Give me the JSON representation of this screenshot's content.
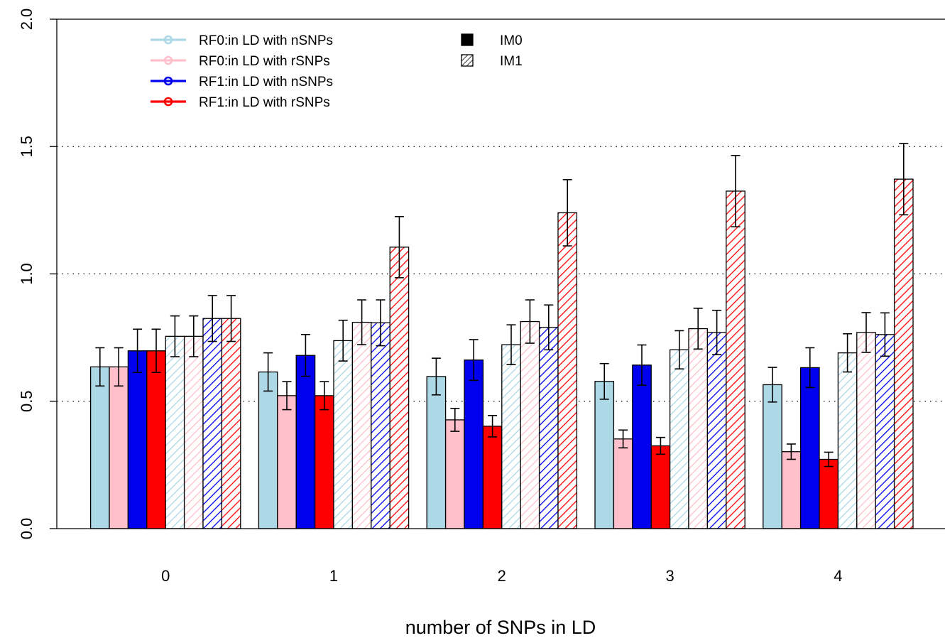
{
  "chart_data": {
    "type": "bar",
    "xlabel": "number of SNPs in LD",
    "ylabel": "",
    "ylim": [
      0,
      2
    ],
    "yticks": [
      "0.0",
      "0.5",
      "1.0",
      "1.5",
      "2.0"
    ],
    "grid": "dotted horizontal at 0.5, 1.0, 1.5",
    "categories": [
      "0",
      "1",
      "2",
      "3",
      "4"
    ],
    "legend_position": "top-left",
    "series": [
      {
        "name": "RF0:in LD with nSNPs",
        "group": "IM0",
        "color": "#add8e6",
        "pattern": "solid",
        "values": [
          0.635,
          0.615,
          0.597,
          0.578,
          0.565
        ],
        "err": [
          0.075,
          0.075,
          0.072,
          0.07,
          0.068
        ]
      },
      {
        "name": "RF0:in LD with rSNPs",
        "group": "IM0",
        "color": "#ffc0cb",
        "pattern": "solid",
        "values": [
          0.635,
          0.522,
          0.427,
          0.352,
          0.302
        ],
        "err": [
          0.075,
          0.055,
          0.045,
          0.035,
          0.03
        ]
      },
      {
        "name": "RF1:in LD with nSNPs",
        "group": "IM0",
        "color": "#0000ee",
        "pattern": "solid",
        "values": [
          0.698,
          0.68,
          0.662,
          0.642,
          0.632
        ],
        "err": [
          0.085,
          0.082,
          0.08,
          0.079,
          0.078
        ]
      },
      {
        "name": "RF1:in LD with rSNPs",
        "group": "IM0",
        "color": "#ff0000",
        "pattern": "solid",
        "values": [
          0.698,
          0.522,
          0.402,
          0.325,
          0.272
        ],
        "err": [
          0.085,
          0.055,
          0.042,
          0.033,
          0.028
        ]
      },
      {
        "name": "RF0:in LD with nSNPs",
        "group": "IM1",
        "color": "#add8e6",
        "pattern": "hatched",
        "values": [
          0.755,
          0.738,
          0.722,
          0.702,
          0.69
        ],
        "err": [
          0.08,
          0.08,
          0.078,
          0.075,
          0.075
        ]
      },
      {
        "name": "RF0:in LD with rSNPs",
        "group": "IM1",
        "color": "#ffc0cb",
        "pattern": "hatched",
        "values": [
          0.755,
          0.81,
          0.813,
          0.785,
          0.77
        ],
        "err": [
          0.08,
          0.088,
          0.085,
          0.08,
          0.078
        ]
      },
      {
        "name": "RF1:in LD with nSNPs",
        "group": "IM1",
        "color": "#0000ee",
        "pattern": "hatched",
        "values": [
          0.825,
          0.808,
          0.79,
          0.77,
          0.762
        ],
        "err": [
          0.09,
          0.09,
          0.088,
          0.087,
          0.085
        ]
      },
      {
        "name": "RF1:in LD with rSNPs",
        "group": "IM1",
        "color": "#ff0000",
        "pattern": "hatched",
        "values": [
          0.825,
          1.105,
          1.24,
          1.325,
          1.372
        ],
        "err": [
          0.09,
          0.12,
          0.13,
          0.14,
          0.14
        ]
      }
    ],
    "legend": {
      "lines": [
        {
          "label": "RF0:in LD with nSNPs",
          "color": "#add8e6"
        },
        {
          "label": "RF0:in LD with rSNPs",
          "color": "#ffc0cb"
        },
        {
          "label": "RF1:in LD with nSNPs",
          "color": "#0000ee"
        },
        {
          "label": "RF1:in LD with rSNPs",
          "color": "#ff0000"
        }
      ],
      "patterns": [
        {
          "label": "IM0",
          "pattern": "solid"
        },
        {
          "label": "IM1",
          "pattern": "hatched"
        }
      ]
    }
  }
}
